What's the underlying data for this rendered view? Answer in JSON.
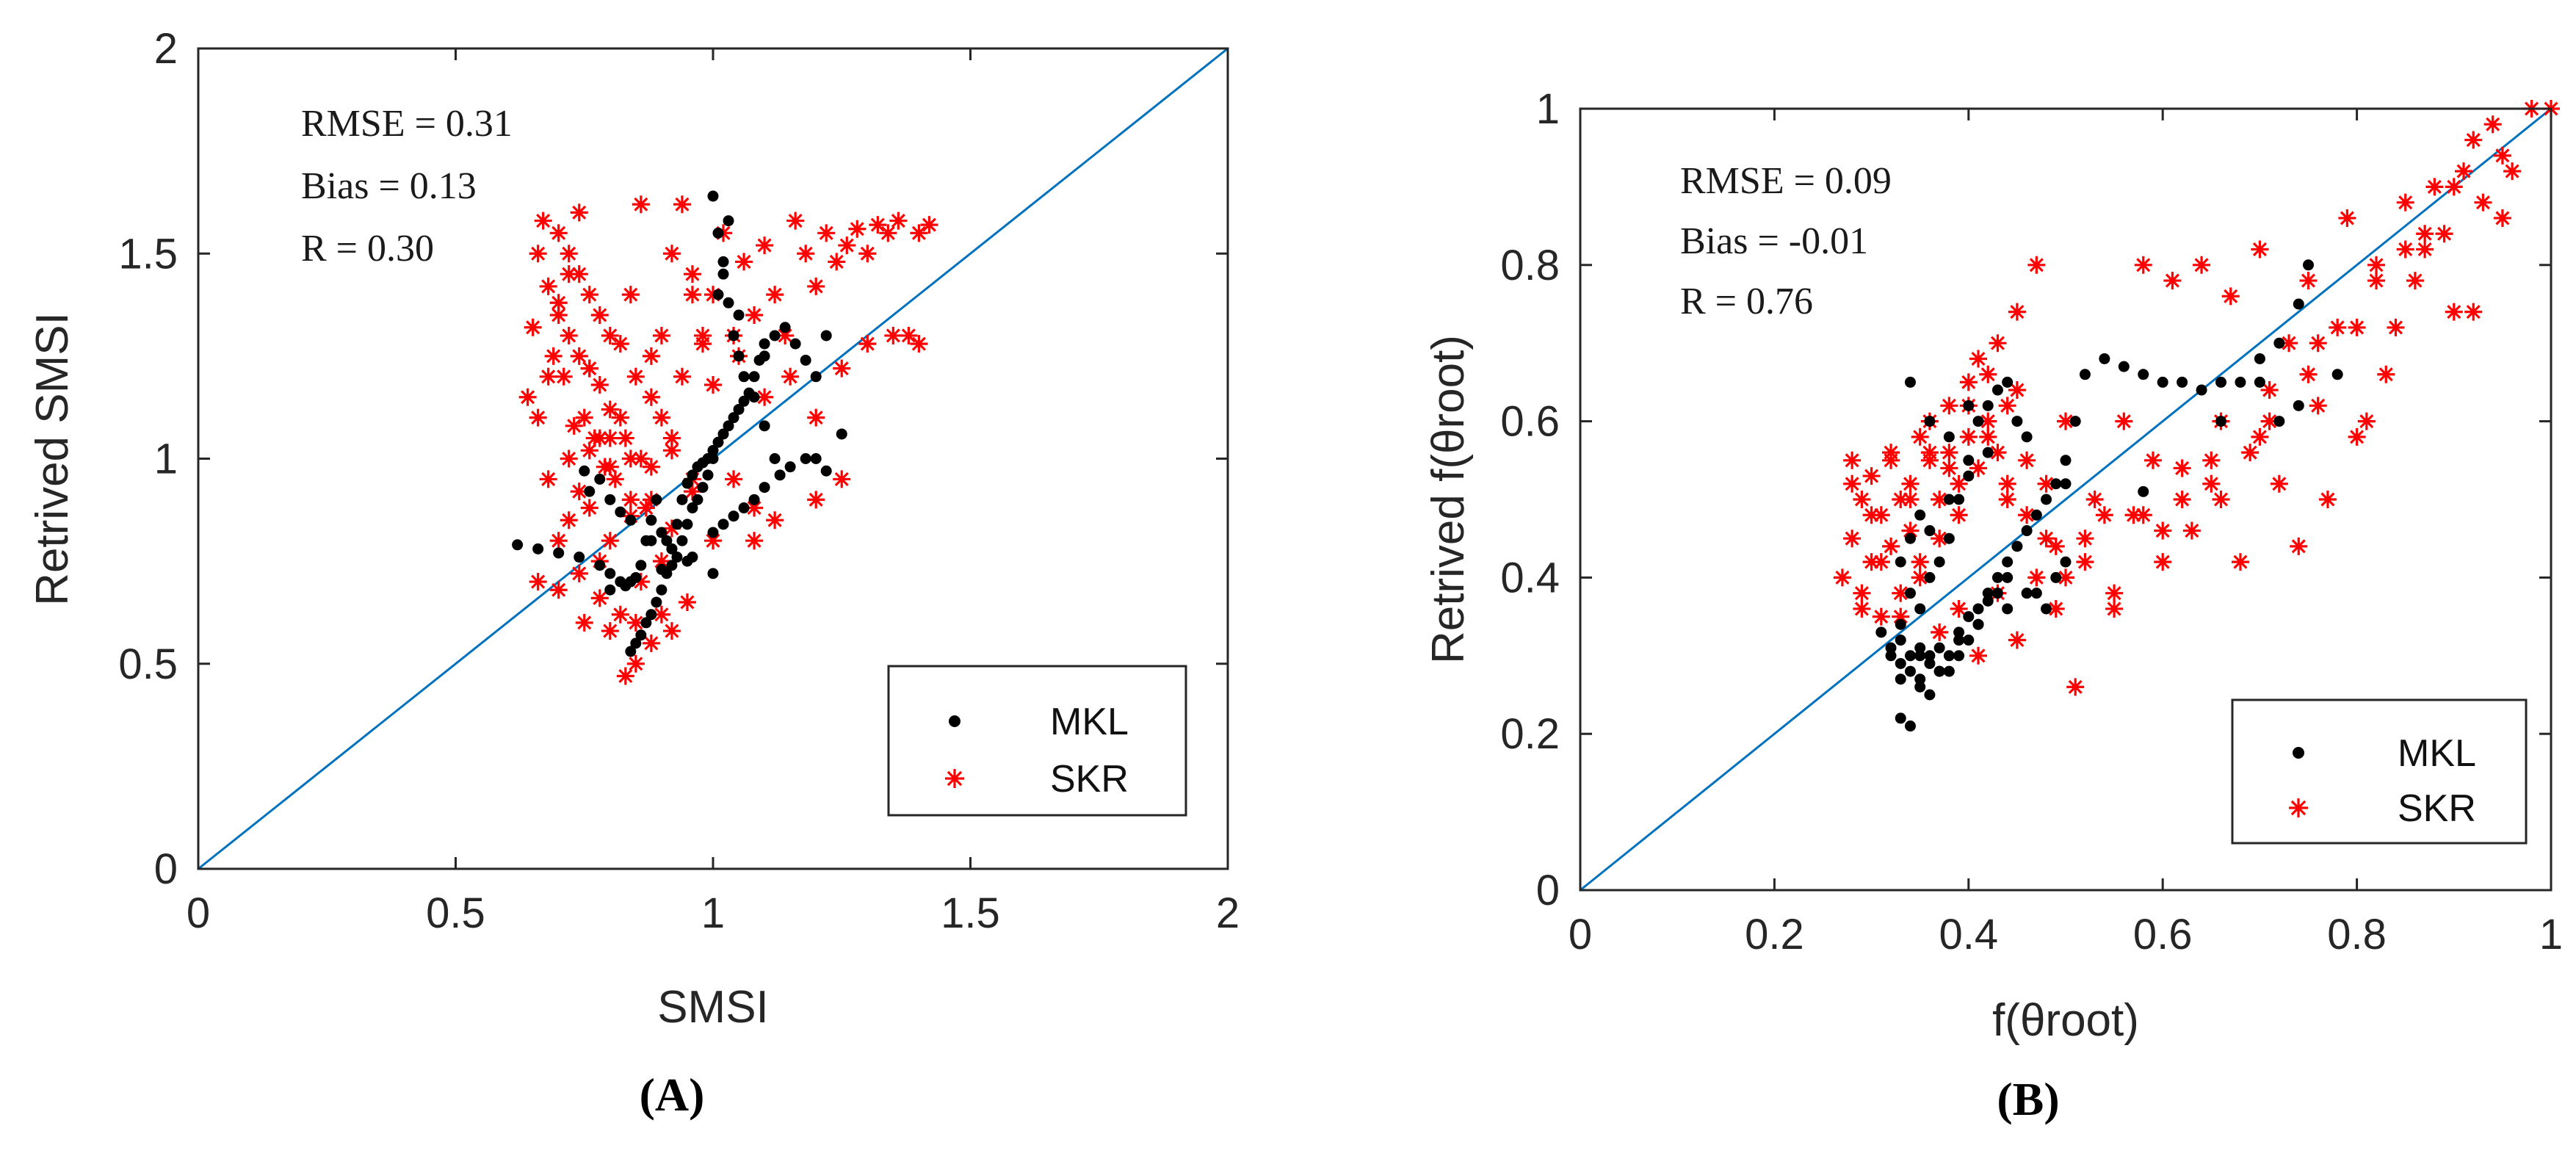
{
  "chart_data": [
    {
      "type": "scatter",
      "panel": "A",
      "caption": "(A)",
      "xlabel": "SMSI",
      "ylabel": "Retrived SMSI",
      "xlim": [
        0,
        2
      ],
      "ylim": [
        0,
        2
      ],
      "xticks": [
        0,
        0.5,
        1,
        1.5,
        2
      ],
      "yticks": [
        0,
        0.5,
        1,
        1.5,
        2
      ],
      "xtick_labels": [
        "0",
        "0.5",
        "1",
        "1.5",
        "2"
      ],
      "ytick_labels": [
        "0",
        "0.5",
        "1",
        "1.5",
        "2"
      ],
      "stats": [
        "RMSE = 0.31",
        "Bias = 0.13",
        "R = 0.30"
      ],
      "reference_line": {
        "from": [
          0,
          0
        ],
        "to": [
          2,
          2
        ],
        "color": "#0072bd"
      },
      "legend": {
        "position": "bottom-right",
        "entries": [
          {
            "label": "MKL",
            "marker": "dot",
            "color": "#000000"
          },
          {
            "label": "SKR",
            "marker": "star",
            "color": "#ff0000"
          }
        ]
      },
      "series": [
        {
          "name": "MKL",
          "color": "#000000",
          "marker": "dot",
          "x": [
            0.62,
            0.66,
            0.7,
            0.74,
            0.78,
            0.75,
            0.8,
            0.84,
            0.86,
            0.87,
            0.88,
            0.89,
            0.9,
            0.91,
            0.92,
            0.93,
            0.94,
            0.95,
            0.96,
            0.97,
            0.98,
            0.99,
            1.0,
            1.01,
            1.02,
            1.03,
            1.04,
            1.05,
            1.06,
            1.07,
            1.08,
            1.09,
            1.1,
            1.12,
            1.14,
            1.16,
            1.18,
            1.2,
            1.22,
            1.25,
            0.84,
            0.85,
            0.86,
            0.87,
            0.88,
            0.89,
            0.9,
            0.91,
            0.92,
            0.93,
            0.94,
            0.95,
            0.96,
            0.97,
            0.98,
            0.99,
            1.0,
            1.0,
            1.01,
            1.02,
            1.03,
            1.04,
            1.05,
            1.06,
            1.08,
            1.1,
            1.12,
            0.8,
            0.82,
            0.83,
            0.85,
            0.9,
            0.95,
            1.0,
            1.02,
            1.04,
            1.06,
            1.08,
            1.1,
            1.13,
            1.15,
            1.18,
            0.76,
            0.78,
            0.8,
            0.82,
            0.84,
            0.88,
            0.92,
            0.96,
            1.0,
            1.01,
            1.02,
            1.03,
            1.05,
            1.1,
            1.2,
            1.22
          ],
          "y": [
            0.79,
            0.78,
            0.77,
            0.76,
            0.74,
            0.97,
            0.72,
            0.7,
            0.74,
            0.8,
            0.85,
            0.9,
            0.82,
            0.8,
            0.78,
            0.84,
            0.9,
            0.94,
            0.96,
            0.98,
            0.99,
            1.0,
            1.02,
            1.04,
            1.06,
            1.08,
            1.1,
            1.12,
            1.14,
            1.16,
            1.2,
            1.24,
            1.28,
            1.3,
            1.32,
            1.28,
            1.24,
            1.2,
            1.3,
            1.06,
            0.53,
            0.55,
            0.57,
            0.6,
            0.62,
            0.65,
            0.68,
            0.72,
            0.74,
            0.76,
            0.8,
            0.84,
            0.88,
            0.9,
            0.93,
            0.96,
            1.0,
            1.64,
            1.55,
            1.45,
            1.38,
            1.3,
            1.25,
            1.2,
            1.15,
            1.08,
            1.0,
            0.68,
            0.7,
            0.69,
            0.71,
            0.73,
            0.75,
            0.82,
            0.84,
            0.86,
            0.88,
            0.9,
            0.93,
            0.96,
            0.98,
            1.0,
            0.92,
            0.95,
            0.9,
            0.87,
            0.85,
            0.8,
            0.78,
            0.76,
            0.72,
            1.4,
            1.48,
            1.58,
            1.35,
            1.25,
            1.0,
            0.97
          ]
        },
        {
          "name": "SKR",
          "color": "#ff0000",
          "marker": "star",
          "x": [
            0.64,
            0.65,
            0.66,
            0.67,
            0.68,
            0.69,
            0.7,
            0.7,
            0.71,
            0.72,
            0.72,
            0.73,
            0.74,
            0.74,
            0.75,
            0.76,
            0.76,
            0.77,
            0.78,
            0.78,
            0.79,
            0.8,
            0.8,
            0.81,
            0.82,
            0.83,
            0.84,
            0.85,
            0.86,
            0.87,
            0.88,
            0.9,
            0.92,
            0.94,
            0.96,
            0.98,
            1.0,
            1.02,
            1.04,
            1.06,
            1.08,
            1.1,
            1.12,
            1.14,
            1.16,
            1.18,
            1.2,
            1.22,
            1.24,
            1.26,
            1.28,
            1.3,
            1.32,
            1.34,
            1.36,
            1.38,
            1.4,
            1.42,
            0.66,
            0.68,
            0.7,
            0.72,
            0.74,
            0.76,
            0.78,
            0.8,
            0.82,
            0.84,
            0.86,
            0.88,
            0.9,
            0.92,
            0.94,
            0.96,
            0.98,
            1.0,
            1.05,
            1.1,
            1.15,
            1.2,
            1.25,
            1.3,
            1.35,
            1.4,
            0.7,
            0.72,
            0.74,
            0.76,
            0.78,
            0.8,
            0.84,
            0.88,
            0.92,
            0.96,
            1.0,
            1.04,
            1.08,
            0.66,
            0.7,
            0.74,
            0.78,
            0.82,
            0.86,
            0.9,
            0.68,
            0.72,
            0.76,
            0.8,
            0.84,
            0.88,
            0.92,
            0.96,
            0.75,
            0.8,
            0.85,
            0.9,
            0.95,
            0.83,
            0.85,
            0.88,
            0.92,
            1.08,
            1.12,
            1.2,
            1.25
          ],
          "y": [
            1.15,
            1.32,
            1.5,
            1.58,
            1.42,
            1.25,
            1.55,
            1.38,
            1.2,
            1.5,
            1.3,
            1.08,
            1.45,
            1.25,
            1.1,
            1.4,
            1.22,
            1.05,
            1.35,
            1.18,
            0.98,
            1.3,
            1.12,
            0.95,
            1.28,
            1.05,
            0.9,
            1.2,
            1.0,
            0.88,
            1.15,
            1.3,
            1.5,
            1.62,
            1.45,
            1.28,
            1.4,
            1.55,
            1.3,
            1.48,
            1.35,
            1.52,
            1.4,
            1.3,
            1.58,
            1.5,
            1.42,
            1.55,
            1.48,
            1.52,
            1.56,
            1.5,
            1.57,
            1.55,
            1.58,
            1.3,
            1.55,
            1.57,
            1.1,
            1.2,
            1.35,
            1.45,
            1.6,
            1.22,
            1.05,
            0.98,
            1.1,
            1.4,
            1.62,
            1.25,
            1.1,
            1.05,
            1.2,
            1.4,
            1.3,
            1.18,
            1.25,
            1.15,
            1.2,
            1.1,
            1.22,
            1.28,
            1.3,
            1.28,
            0.8,
            0.85,
            0.92,
            0.88,
            0.75,
            0.8,
            0.86,
            0.9,
            0.83,
            0.92,
            0.8,
            0.95,
            0.88,
            0.7,
            0.68,
            0.72,
            0.66,
            0.62,
            0.7,
            0.75,
            0.95,
            1.0,
            1.02,
            1.05,
            1.0,
            0.98,
            1.02,
            0.95,
            0.6,
            0.58,
            0.6,
            0.62,
            0.65,
            0.47,
            0.5,
            0.55,
            0.58,
            0.8,
            0.85,
            0.9,
            0.95
          ]
        }
      ]
    },
    {
      "type": "scatter",
      "panel": "B",
      "caption": "(B)",
      "xlabel": "f(θroot)",
      "ylabel": "Retrived f(θroot)",
      "xlim": [
        0,
        1
      ],
      "ylim": [
        0,
        1
      ],
      "xticks": [
        0,
        0.2,
        0.4,
        0.6,
        0.8,
        1
      ],
      "yticks": [
        0,
        0.2,
        0.4,
        0.6,
        0.8,
        1
      ],
      "xtick_labels": [
        "0",
        "0.2",
        "0.4",
        "0.6",
        "0.8",
        "1"
      ],
      "ytick_labels": [
        "0",
        "0.2",
        "0.4",
        "0.6",
        "0.8",
        "1"
      ],
      "stats": [
        "RMSE = 0.09",
        "Bias = -0.01",
        "R = 0.76"
      ],
      "reference_line": {
        "from": [
          0,
          0
        ],
        "to": [
          1,
          1
        ],
        "color": "#0072bd"
      },
      "legend": {
        "position": "bottom-right",
        "entries": [
          {
            "label": "MKL",
            "marker": "dot",
            "color": "#000000"
          },
          {
            "label": "SKR",
            "marker": "star",
            "color": "#ff0000"
          }
        ]
      },
      "series": [
        {
          "name": "MKL",
          "color": "#000000",
          "marker": "dot",
          "x": [
            0.31,
            0.32,
            0.32,
            0.33,
            0.33,
            0.33,
            0.34,
            0.34,
            0.34,
            0.35,
            0.35,
            0.35,
            0.36,
            0.36,
            0.36,
            0.37,
            0.37,
            0.38,
            0.38,
            0.39,
            0.39,
            0.4,
            0.4,
            0.41,
            0.41,
            0.42,
            0.42,
            0.43,
            0.43,
            0.44,
            0.44,
            0.45,
            0.46,
            0.47,
            0.48,
            0.49,
            0.5,
            0.51,
            0.52,
            0.54,
            0.56,
            0.58,
            0.6,
            0.62,
            0.64,
            0.66,
            0.68,
            0.7,
            0.72,
            0.74,
            0.75,
            0.78,
            0.33,
            0.34,
            0.35,
            0.36,
            0.37,
            0.38,
            0.39,
            0.4,
            0.41,
            0.42,
            0.43,
            0.44,
            0.45,
            0.46,
            0.47,
            0.48,
            0.49,
            0.5,
            0.33,
            0.34,
            0.35,
            0.36,
            0.38,
            0.4,
            0.42,
            0.34,
            0.36,
            0.38,
            0.4,
            0.33,
            0.35,
            0.37,
            0.39,
            0.41,
            0.44,
            0.46,
            0.5,
            0.58,
            0.66,
            0.7,
            0.74,
            0.72
          ],
          "y": [
            0.33,
            0.31,
            0.3,
            0.29,
            0.32,
            0.22,
            0.3,
            0.28,
            0.21,
            0.31,
            0.27,
            0.26,
            0.3,
            0.29,
            0.25,
            0.28,
            0.31,
            0.3,
            0.28,
            0.33,
            0.3,
            0.35,
            0.32,
            0.36,
            0.34,
            0.38,
            0.37,
            0.4,
            0.38,
            0.42,
            0.4,
            0.44,
            0.46,
            0.48,
            0.5,
            0.52,
            0.55,
            0.6,
            0.66,
            0.68,
            0.67,
            0.66,
            0.65,
            0.65,
            0.64,
            0.65,
            0.65,
            0.68,
            0.7,
            0.75,
            0.8,
            0.66,
            0.34,
            0.38,
            0.36,
            0.4,
            0.42,
            0.45,
            0.5,
            0.55,
            0.6,
            0.62,
            0.64,
            0.65,
            0.6,
            0.58,
            0.38,
            0.36,
            0.4,
            0.52,
            0.42,
            0.45,
            0.48,
            0.46,
            0.5,
            0.53,
            0.56,
            0.65,
            0.6,
            0.58,
            0.62,
            0.27,
            0.3,
            0.28,
            0.32,
            0.34,
            0.36,
            0.38,
            0.42,
            0.51,
            0.6,
            0.65,
            0.62,
            0.6
          ]
        },
        {
          "name": "SKR",
          "color": "#ff0000",
          "marker": "star",
          "x": [
            0.27,
            0.28,
            0.28,
            0.29,
            0.29,
            0.3,
            0.3,
            0.31,
            0.31,
            0.32,
            0.32,
            0.33,
            0.33,
            0.34,
            0.34,
            0.35,
            0.35,
            0.36,
            0.36,
            0.37,
            0.37,
            0.38,
            0.38,
            0.39,
            0.39,
            0.4,
            0.4,
            0.41,
            0.41,
            0.42,
            0.42,
            0.43,
            0.43,
            0.44,
            0.44,
            0.45,
            0.45,
            0.46,
            0.47,
            0.48,
            0.49,
            0.5,
            0.51,
            0.52,
            0.53,
            0.54,
            0.55,
            0.56,
            0.57,
            0.58,
            0.59,
            0.6,
            0.61,
            0.62,
            0.63,
            0.64,
            0.65,
            0.66,
            0.67,
            0.68,
            0.69,
            0.7,
            0.71,
            0.72,
            0.73,
            0.74,
            0.75,
            0.76,
            0.77,
            0.78,
            0.79,
            0.8,
            0.81,
            0.82,
            0.83,
            0.84,
            0.85,
            0.86,
            0.87,
            0.88,
            0.89,
            0.9,
            0.91,
            0.92,
            0.93,
            0.94,
            0.95,
            0.96,
            0.98,
            1.0,
            0.28,
            0.3,
            0.32,
            0.34,
            0.36,
            0.38,
            0.4,
            0.42,
            0.44,
            0.46,
            0.48,
            0.5,
            0.55,
            0.6,
            0.65,
            0.7,
            0.75,
            0.8,
            0.85,
            0.9,
            0.95,
            0.29,
            0.31,
            0.33,
            0.35,
            0.37,
            0.39,
            0.41,
            0.43,
            0.45,
            0.47,
            0.49,
            0.52,
            0.58,
            0.62,
            0.66,
            0.71,
            0.76,
            0.82,
            0.87,
            0.92
          ],
          "y": [
            0.4,
            0.55,
            0.45,
            0.5,
            0.38,
            0.53,
            0.42,
            0.48,
            0.35,
            0.56,
            0.44,
            0.5,
            0.38,
            0.52,
            0.46,
            0.58,
            0.42,
            0.55,
            0.6,
            0.5,
            0.45,
            0.56,
            0.62,
            0.52,
            0.48,
            0.58,
            0.65,
            0.54,
            0.68,
            0.6,
            0.66,
            0.56,
            0.7,
            0.62,
            0.5,
            0.64,
            0.74,
            0.48,
            0.8,
            0.52,
            0.44,
            0.6,
            0.26,
            0.45,
            0.5,
            0.48,
            0.38,
            0.6,
            0.48,
            0.8,
            0.55,
            0.42,
            0.78,
            0.5,
            0.46,
            0.8,
            0.55,
            0.5,
            0.76,
            0.42,
            0.56,
            0.82,
            0.6,
            0.52,
            0.7,
            0.44,
            0.78,
            0.62,
            0.5,
            0.72,
            0.86,
            0.58,
            0.6,
            0.8,
            0.66,
            0.72,
            0.88,
            0.78,
            0.82,
            0.9,
            0.84,
            0.74,
            0.92,
            0.96,
            0.88,
            0.98,
            0.86,
            0.92,
            1.0,
            1.0,
            0.52,
            0.48,
            0.55,
            0.5,
            0.56,
            0.54,
            0.62,
            0.58,
            0.52,
            0.55,
            0.45,
            0.4,
            0.36,
            0.46,
            0.52,
            0.58,
            0.66,
            0.72,
            0.82,
            0.9,
            0.94,
            0.36,
            0.42,
            0.35,
            0.4,
            0.33,
            0.36,
            0.3,
            0.38,
            0.32,
            0.4,
            0.36,
            0.42,
            0.48,
            0.54,
            0.6,
            0.64,
            0.7,
            0.78,
            0.84,
            0.74
          ]
        }
      ]
    }
  ]
}
